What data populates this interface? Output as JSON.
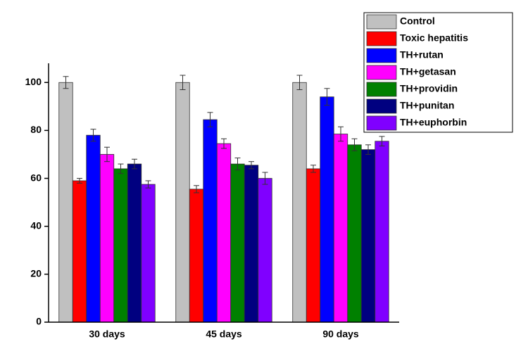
{
  "chart_data": {
    "type": "bar",
    "categories": [
      "30 days",
      "45 days",
      "90 days"
    ],
    "series": [
      {
        "name": "Control",
        "color": "#c0c0c0",
        "values": [
          100,
          100,
          100
        ],
        "errors": [
          2.5,
          3,
          3
        ]
      },
      {
        "name": "Toxic hepatitis",
        "color": "#ff0000",
        "values": [
          59,
          55.5,
          64
        ],
        "errors": [
          1,
          1.5,
          1.5
        ]
      },
      {
        "name": "TH+rutan",
        "color": "#0000ff",
        "values": [
          78,
          84.5,
          94
        ],
        "errors": [
          2.5,
          3,
          3.5
        ]
      },
      {
        "name": "TH+getasan",
        "color": "#ff00ff",
        "values": [
          70,
          74.5,
          78.5
        ],
        "errors": [
          3,
          2,
          3
        ]
      },
      {
        "name": "TH+providin",
        "color": "#008000",
        "values": [
          64,
          66,
          74
        ],
        "errors": [
          2,
          2.5,
          2.5
        ]
      },
      {
        "name": "TH+punitan",
        "color": "#000080",
        "values": [
          66,
          65.5,
          72
        ],
        "errors": [
          2,
          1.5,
          2
        ]
      },
      {
        "name": "TH+euphorbin",
        "color": "#8000ff",
        "values": [
          57.5,
          60,
          75.5
        ],
        "errors": [
          1.5,
          2.5,
          2
        ]
      }
    ],
    "ylim": [
      0,
      108
    ],
    "yticks": [
      0,
      20,
      40,
      60,
      80,
      100
    ],
    "legend": "upper right"
  }
}
